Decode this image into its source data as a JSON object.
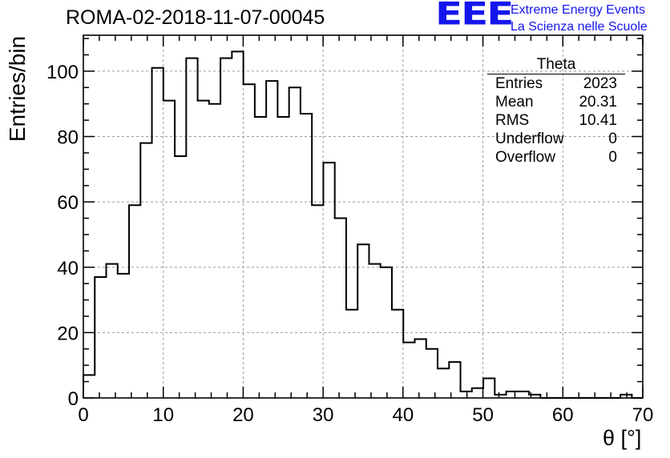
{
  "header": {
    "run_title": "ROMA-02-2018-11-07-00045",
    "logo_mark": "EEE",
    "logo_line1": "Extreme Energy Events",
    "logo_line2": "La Scienza nelle Scuole"
  },
  "stats_box": {
    "title": "Theta",
    "rows": [
      {
        "label": "Entries",
        "value": "2023"
      },
      {
        "label": "Mean",
        "value": "20.31"
      },
      {
        "label": "RMS",
        "value": "10.41"
      },
      {
        "label": "Underflow",
        "value": "0"
      },
      {
        "label": "Overflow",
        "value": "0"
      }
    ]
  },
  "colors": {
    "line": "#000000",
    "grid": "#9a9a9a",
    "logo": "#1515ee"
  },
  "chart_data": {
    "type": "histogram",
    "title": "ROMA-02-2018-11-07-00045",
    "xlabel": "θ [°]",
    "ylabel": "Entries/bin",
    "xlim": [
      0,
      70
    ],
    "ylim": [
      0,
      111
    ],
    "x_ticks": [
      0,
      10,
      20,
      30,
      40,
      50,
      60,
      70
    ],
    "y_ticks": [
      0,
      20,
      40,
      60,
      80,
      100
    ],
    "grid": true,
    "bin_width": 1.43,
    "values": [
      7,
      37,
      41,
      38,
      59,
      78,
      101,
      91,
      74,
      104,
      91,
      90,
      104,
      106,
      96,
      86,
      97,
      86,
      95,
      87,
      59,
      72,
      55,
      27,
      47,
      41,
      40,
      27,
      17,
      18,
      15,
      9,
      11,
      2,
      3,
      6,
      1,
      2,
      2,
      1,
      0,
      0,
      0,
      0,
      0,
      0,
      0,
      1,
      0
    ]
  }
}
